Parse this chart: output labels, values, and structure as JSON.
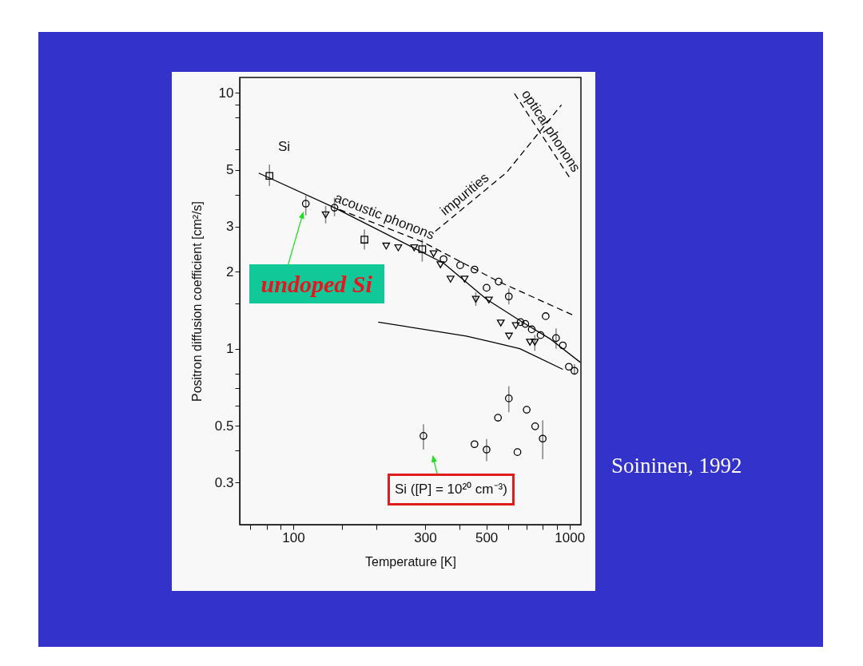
{
  "chart_data": {
    "type": "scatter",
    "xlabel": "Temperature [K]",
    "ylabel": "Positron diffusion coefficient  [cm²/s]",
    "log": "xy",
    "grid": false,
    "xlim": [
      64,
      1100
    ],
    "ylim": [
      0.205,
      11.5
    ],
    "xticks": [
      {
        "value": 70,
        "label": null
      },
      {
        "value": 80,
        "label": null
      },
      {
        "value": 90,
        "label": null
      },
      100,
      {
        "value": 150,
        "label": null
      },
      {
        "value": 200,
        "label": null
      },
      300,
      {
        "value": 400,
        "label": null
      },
      500,
      {
        "value": 600,
        "label": null
      },
      {
        "value": 700,
        "label": null
      },
      {
        "value": 800,
        "label": null
      },
      {
        "value": 900,
        "label": null
      },
      1000
    ],
    "yticks": [
      0.3,
      {
        "value": 0.4,
        "label": null
      },
      0.5,
      {
        "value": 0.6,
        "label": null
      },
      {
        "value": 0.7,
        "label": null
      },
      {
        "value": 0.8,
        "label": null
      },
      1,
      {
        "value": 1.5,
        "label": null
      },
      2,
      3,
      {
        "value": 4,
        "label": null
      },
      5,
      {
        "value": 6,
        "label": null
      },
      {
        "value": 8,
        "label": null
      },
      {
        "value": 9,
        "label": null
      },
      10
    ],
    "series": [
      {
        "marker": "square",
        "color": "#000000",
        "x": [
          82,
          181,
          293
        ],
        "values": [
          4.74,
          2.67,
          2.45
        ],
        "errors": [
          [
            4.33,
            5.25
          ],
          [
            2.44,
            2.92
          ],
          [
            2.19,
            2.68
          ]
        ]
      },
      {
        "marker": "circle",
        "color": "#000000",
        "x": [
          111,
          141,
          350,
          402,
          453,
          501,
          554,
          603,
          665,
          692,
          730,
          786,
          820,
          894,
          946,
          995,
          1042
        ],
        "values": [
          3.69,
          3.56,
          2.24,
          2.12,
          2.04,
          1.73,
          1.83,
          1.6,
          1.27,
          1.25,
          1.19,
          1.13,
          1.34,
          1.1,
          1.03,
          0.85,
          0.82
        ],
        "errors": [
          [
            3.32,
            3.97
          ],
          [
            3.29,
            3.89
          ],
          null,
          null,
          null,
          null,
          null,
          [
            1.49,
            1.72
          ],
          null,
          null,
          null,
          null,
          null,
          [
            1.0,
            1.2
          ],
          null,
          null,
          [
            0.79,
            0.87
          ]
        ]
      },
      {
        "marker": "triangle",
        "color": "#000000",
        "x": [
          131,
          217,
          240,
          274,
          322,
          341,
          371,
          417,
          458,
          511,
          564,
          604,
          639,
          719,
          749
        ],
        "values": [
          3.34,
          2.52,
          2.48,
          2.48,
          2.35,
          2.13,
          1.87,
          1.87,
          1.56,
          1.55,
          1.26,
          1.12,
          1.23,
          1.06,
          1.06
        ],
        "errors": [
          [
            3.09,
            3.62
          ],
          null,
          null,
          null,
          null,
          null,
          null,
          null,
          [
            1.47,
            1.66
          ],
          null,
          null,
          null,
          null,
          null,
          [
            0.98,
            1.13
          ]
        ]
      },
      {
        "marker": "circle",
        "color": "#000000",
        "x": [
          296,
          453,
          501,
          551,
          603,
          648,
          700,
          751,
          800
        ],
        "values": [
          0.456,
          0.423,
          0.403,
          0.537,
          0.639,
          0.394,
          0.577,
          0.497,
          0.445
        ],
        "errors": [
          [
            0.403,
            0.506
          ],
          null,
          [
            0.363,
            0.443
          ],
          null,
          [
            0.564,
            0.713
          ],
          null,
          null,
          null,
          [
            0.37,
            0.525
          ]
        ]
      },
      {
        "type": "line",
        "marker": "none",
        "line_style": "solid",
        "color": "#000000",
        "x": [
          75,
          141,
          350,
          501,
          683,
          854,
          1093
        ],
        "values": [
          4.86,
          3.56,
          2.16,
          1.56,
          1.26,
          1.09,
          0.885
        ]
      },
      {
        "type": "line",
        "name": "acoustic phonons",
        "marker": "none",
        "line_style": "dashed",
        "color": "#000000",
        "x": [
          147,
          293,
          554,
          1034
        ],
        "values": [
          3.5,
          2.62,
          1.83,
          1.35
        ]
      },
      {
        "type": "line",
        "name": "impurities",
        "marker": "none",
        "line_style": "dashed",
        "color": "#000000",
        "x": [
          327,
          591,
          935
        ],
        "values": [
          2.88,
          4.88,
          8.98
        ]
      },
      {
        "type": "line",
        "name": "optical phonons",
        "marker": "none",
        "line_style": "dashed",
        "color": "#000000",
        "x": [
          632,
          1010
        ],
        "values": [
          9.95,
          4.6
        ]
      },
      {
        "type": "line",
        "marker": "none",
        "line_style": "solid",
        "color": "#000000",
        "x": [
          203,
          423,
          529,
          661,
          946
        ],
        "values": [
          1.27,
          1.12,
          1.06,
          1.0,
          0.83
        ]
      }
    ],
    "annotations": [
      "Si",
      {
        "text": "undoped Si",
        "x": 111,
        "y": 3.69
      },
      "Si ([P] = 10²⁰ cm⁻³)",
      "Soininen, 1992"
    ]
  }
}
